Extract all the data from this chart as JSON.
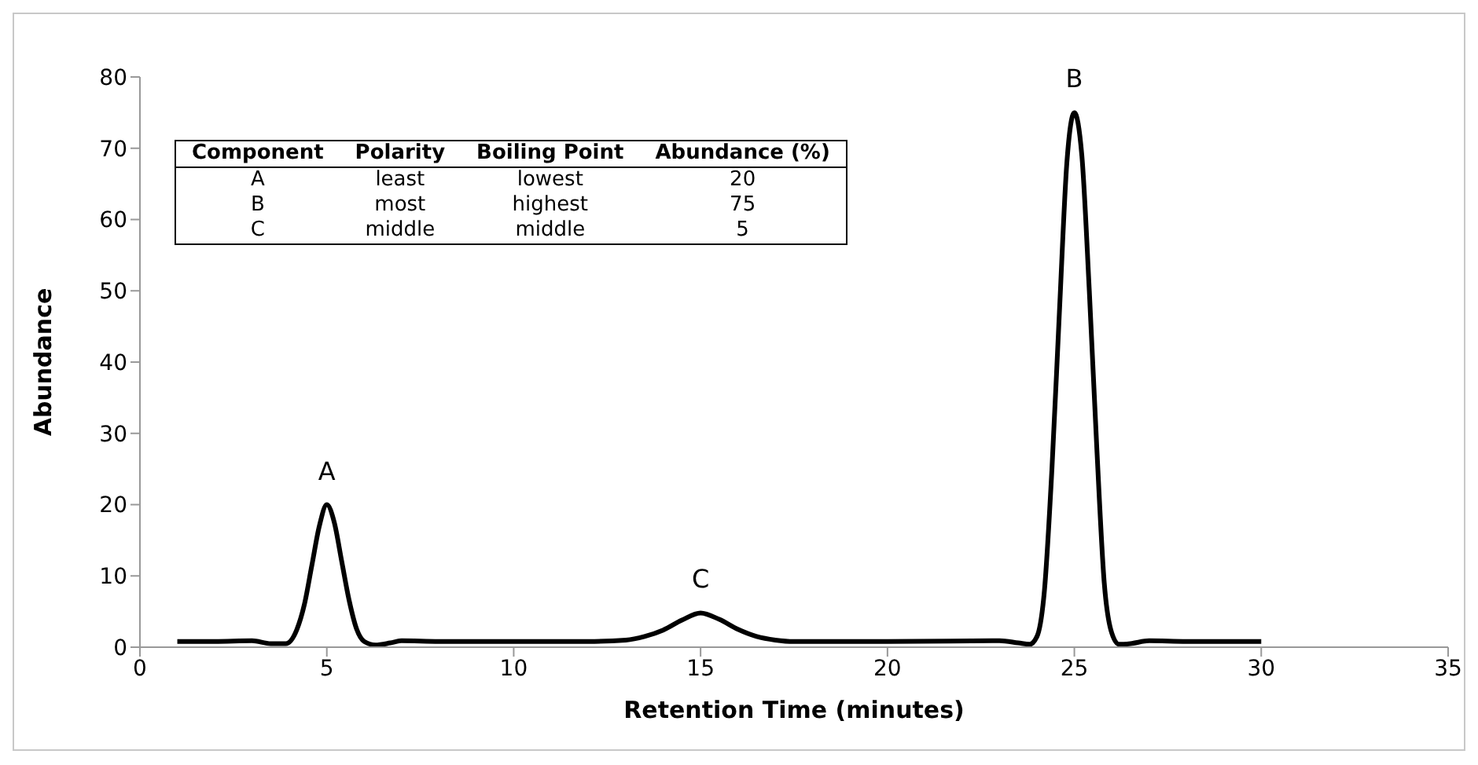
{
  "chart_data": {
    "type": "line",
    "xlabel": "Retention Time (minutes)",
    "ylabel": "Abundance",
    "x": [
      1,
      2,
      3,
      3.5,
      3.9,
      4.2,
      4.4,
      4.6,
      4.8,
      5,
      5.2,
      5.4,
      5.6,
      5.8,
      6,
      6.3,
      6.7,
      7,
      8,
      10,
      12,
      13,
      13.5,
      14,
      14.5,
      15,
      15.5,
      16,
      16.5,
      17,
      17.5,
      20,
      23,
      23.5,
      23.8,
      24,
      24.2,
      24.4,
      24.6,
      24.8,
      25,
      25.2,
      25.4,
      25.6,
      25.8,
      26,
      26.2,
      26.5,
      27,
      28,
      30
    ],
    "series": [
      {
        "color": "#000000",
        "values": [
          0.8,
          0.8,
          0.9,
          0.5,
          0.5,
          2.5,
          6,
          11.5,
          17,
          20,
          17.5,
          12,
          6.5,
          2.5,
          0.8,
          0.3,
          0.6,
          0.9,
          0.8,
          0.8,
          0.8,
          1.0,
          1.5,
          2.4,
          3.8,
          4.8,
          3.9,
          2.5,
          1.5,
          1.0,
          0.8,
          0.8,
          0.9,
          0.6,
          0.4,
          1.5,
          8,
          25,
          47,
          68,
          75,
          69,
          50,
          28,
          9,
          2,
          0.4,
          0.5,
          0.9,
          0.8,
          0.8
        ]
      }
    ],
    "xlim": [
      0,
      35
    ],
    "xticks": [
      0,
      5,
      10,
      15,
      20,
      25,
      30,
      35
    ],
    "ylim": [
      0,
      80
    ],
    "yticks": [
      0,
      10,
      20,
      30,
      40,
      50,
      60,
      70,
      80
    ],
    "grid": false,
    "marker": "none",
    "annotations": [
      {
        "text": "A",
        "x": 5,
        "y": 20
      },
      {
        "text": "C",
        "x": 15,
        "y": 4.8
      },
      {
        "text": "B",
        "x": 25,
        "y": 75
      },
      "Component",
      "Polarity",
      "Boiling Point",
      "Abundance (%)",
      "A",
      "least",
      "lowest",
      "20",
      "B",
      "most",
      "highest",
      "75",
      "C",
      "middle",
      "middle",
      "5"
    ]
  }
}
